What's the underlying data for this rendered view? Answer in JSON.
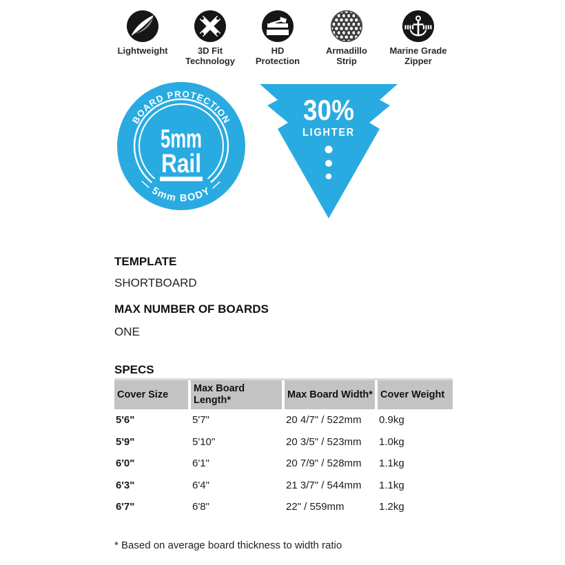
{
  "features": [
    {
      "label": "Lightweight"
    },
    {
      "label": "3D Fit\nTechnology"
    },
    {
      "label": "HD\nProtection"
    },
    {
      "label": "Armadillo\nStrip"
    },
    {
      "label": "Marine Grade\nZipper"
    }
  ],
  "badges": {
    "rail": {
      "top_arc": "— BOARD PROTECTION —",
      "line1": "5mm",
      "line2": "Rail",
      "bottom_arc": "— 5mm BODY —",
      "color": "#29abe2"
    },
    "lighter": {
      "value": "30%",
      "label": "LIGHTER",
      "color": "#29abe2"
    }
  },
  "sections": [
    {
      "heading": "TEMPLATE",
      "value": "SHORTBOARD"
    },
    {
      "heading": "MAX NUMBER OF BOARDS",
      "value": "ONE"
    }
  ],
  "specs": {
    "heading": "SPECS",
    "columns": [
      "Cover Size",
      "Max Board Length*",
      "Max Board Width*",
      "Cover Weight"
    ],
    "rows": [
      [
        "5'6\"",
        "5'7\"",
        "20 4/7\" / 522mm",
        "0.9kg"
      ],
      [
        "5'9\"",
        "5'10\"",
        "20 3/5\" / 523mm",
        "1.0kg"
      ],
      [
        "6'0\"",
        "6'1\"",
        "20 7/9\" / 528mm",
        "1.1kg"
      ],
      [
        "6'3\"",
        "6'4\"",
        "21 3/7\" / 544mm",
        "1.1kg"
      ],
      [
        "6'7\"",
        "6'8\"",
        "22\" / 559mm",
        "1.2kg"
      ]
    ],
    "footnote": "* Based on average board thickness to width ratio"
  },
  "colors": {
    "accent": "#29abe2",
    "table_header_bg": "#c3c3c3",
    "icon_fill": "#161616"
  }
}
